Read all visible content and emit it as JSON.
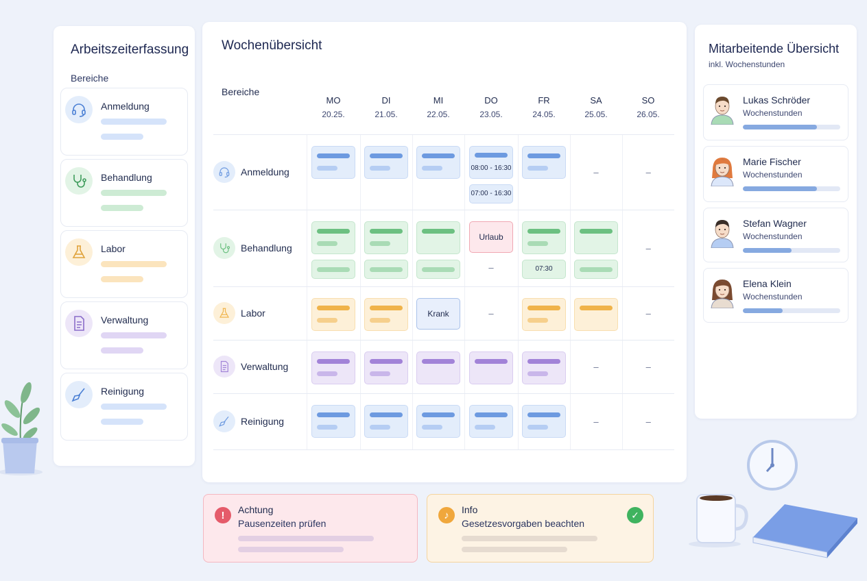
{
  "sidebar": {
    "title": "Arbeitszeiterfassung",
    "subtitle": "Bereiche",
    "items": [
      {
        "label": "Anmeldung",
        "icon": "headset-icon",
        "color": "#4a7fd4",
        "bg": "#e3edfb",
        "bar": "#d5e3fa"
      },
      {
        "label": "Behandlung",
        "icon": "stethoscope-icon",
        "color": "#3f9c5c",
        "bg": "#e2f4e6",
        "bar": "#cdebd4"
      },
      {
        "label": "Labor",
        "icon": "flask-icon",
        "color": "#e0a23a",
        "bg": "#fdf0d8",
        "bar": "#fbe4bd"
      },
      {
        "label": "Verwaltung",
        "icon": "document-icon",
        "color": "#8a6cc9",
        "bg": "#ede6f8",
        "bar": "#e0d6f4"
      },
      {
        "label": "Reinigung",
        "icon": "broom-icon",
        "color": "#4a7fd4",
        "bg": "#e3edfb",
        "bar": "#d5e3fa"
      }
    ]
  },
  "main": {
    "title": "Wochenübersicht",
    "row_header": "Bereiche",
    "days": [
      {
        "day": "MO",
        "date": "20.25."
      },
      {
        "day": "DI",
        "date": "21.05."
      },
      {
        "day": "MI",
        "date": "22.05."
      },
      {
        "day": "DO",
        "date": "23.05."
      },
      {
        "day": "FR",
        "date": "24.05."
      },
      {
        "day": "SA",
        "date": "25.05."
      },
      {
        "day": "SO",
        "date": "26.05."
      }
    ],
    "rows": [
      {
        "label": "Anmeldung",
        "icon": "headset-icon",
        "color": "blue",
        "cells": [
          [
            {
              "t": "bar"
            }
          ],
          [
            {
              "t": "bar"
            }
          ],
          [
            {
              "t": "bar"
            }
          ],
          [
            {
              "t": "text",
              "v": "08:00 - 16:30"
            },
            {
              "t": "small",
              "v": "07:00 - 16:30"
            }
          ],
          [
            {
              "t": "bar"
            }
          ],
          [
            {
              "t": "dash",
              "v": "–"
            }
          ],
          [
            {
              "t": "dash",
              "v": "–"
            }
          ]
        ]
      },
      {
        "label": "Behandlung",
        "icon": "stethoscope-icon",
        "color": "green",
        "cells": [
          [
            {
              "t": "bar"
            },
            {
              "t": "single"
            }
          ],
          [
            {
              "t": "bar"
            },
            {
              "t": "single"
            }
          ],
          [
            {
              "t": "single1"
            },
            {
              "t": "single"
            }
          ],
          [
            {
              "t": "status",
              "v": "Urlaub",
              "kind": "urlaub"
            },
            {
              "t": "dash2",
              "v": "–"
            }
          ],
          [
            {
              "t": "bar"
            },
            {
              "t": "small",
              "v": "07:30"
            }
          ],
          [
            {
              "t": "single1"
            },
            {
              "t": "single"
            }
          ],
          [
            {
              "t": "dash",
              "v": "–"
            }
          ]
        ]
      },
      {
        "label": "Labor",
        "icon": "flask-icon",
        "color": "orange",
        "cells": [
          [
            {
              "t": "bar"
            }
          ],
          [
            {
              "t": "bar"
            }
          ],
          [
            {
              "t": "status",
              "v": "Krank",
              "kind": "krank"
            }
          ],
          [
            {
              "t": "dash",
              "v": "–"
            }
          ],
          [
            {
              "t": "bar"
            }
          ],
          [
            {
              "t": "single1"
            }
          ],
          [
            {
              "t": "dash",
              "v": "–"
            }
          ]
        ]
      },
      {
        "label": "Verwaltung",
        "icon": "document-icon",
        "color": "purple",
        "cells": [
          [
            {
              "t": "bar"
            }
          ],
          [
            {
              "t": "bar"
            }
          ],
          [
            {
              "t": "single1"
            }
          ],
          [
            {
              "t": "single1"
            }
          ],
          [
            {
              "t": "bar"
            }
          ],
          [
            {
              "t": "dash",
              "v": "–"
            }
          ],
          [
            {
              "t": "dash",
              "v": "–"
            }
          ]
        ]
      },
      {
        "label": "Reinigung",
        "icon": "broom-icon",
        "color": "blue",
        "cells": [
          [
            {
              "t": "bar"
            }
          ],
          [
            {
              "t": "bar"
            }
          ],
          [
            {
              "t": "bar"
            }
          ],
          [
            {
              "t": "bar"
            }
          ],
          [
            {
              "t": "bar"
            }
          ],
          [
            {
              "t": "dash",
              "v": "–"
            }
          ],
          [
            {
              "t": "dash",
              "v": "–"
            }
          ]
        ]
      }
    ]
  },
  "palette": {
    "blue": {
      "bg": "#e3edfb",
      "border": "#c9daf5",
      "line": "#6d9ae0",
      "line2": "#b5cdf3"
    },
    "green": {
      "bg": "#e2f4e6",
      "border": "#c4e6cd",
      "line": "#6cc081",
      "line2": "#a9dbb5"
    },
    "orange": {
      "bg": "#fdf0d8",
      "border": "#f8deae",
      "line": "#f0b34a",
      "line2": "#f6cf8c"
    },
    "purple": {
      "bg": "#ede6f8",
      "border": "#d9ccf0",
      "line": "#a283d8",
      "line2": "#c9b6ea"
    }
  },
  "team": {
    "title": "Mitarbeitende Übersicht",
    "subtitle": "inkl. Wochenstunden",
    "people": [
      {
        "name": "Lukas Schröder",
        "label": "Wochenstunden",
        "progress": 0.76,
        "hair": "#6b4a2e",
        "shirt": "#a9dbb5"
      },
      {
        "name": "Marie Fischer",
        "label": "Wochenstunden",
        "progress": 0.76,
        "hair": "#e07a3e",
        "shirt": "#dce7fa"
      },
      {
        "name": "Stefan Wagner",
        "label": "Wochenstunden",
        "progress": 0.5,
        "hair": "#3a2e28",
        "shirt": "#b5cdf3"
      },
      {
        "name": "Elena Klein",
        "label": "Wochenstunden",
        "progress": 0.41,
        "hair": "#7a4a30",
        "shirt": "#e8dcd0"
      }
    ]
  },
  "alerts": [
    {
      "title": "Achtung",
      "text": "Pausenzeiten prüfen",
      "icon": "warning-icon",
      "symbol": "!",
      "bg": "#fde8ec",
      "border": "#f4b7c0",
      "icon_bg": "#e55b6a",
      "line": "#e3cfe3"
    },
    {
      "title": "Info",
      "text": "Gesetzesvorgaben beachten",
      "icon": "bell-icon",
      "symbol": "♪",
      "bg": "#fdf3e4",
      "border": "#f5d49d",
      "icon_bg": "#f0a73c",
      "line": "#e6dbd0",
      "check": "✓"
    }
  ]
}
